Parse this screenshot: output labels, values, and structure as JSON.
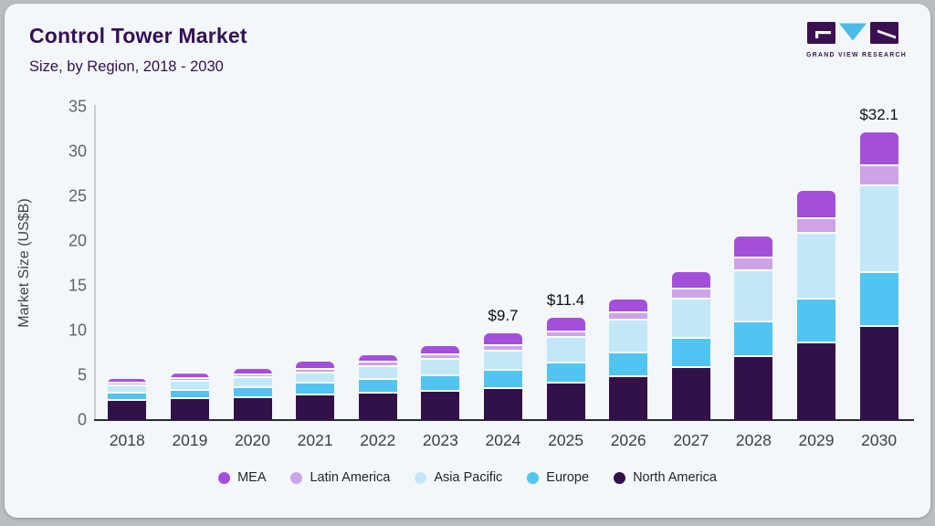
{
  "header": {
    "title": "Control Tower Market",
    "subtitle": "Size, by Region, 2018 - 2030",
    "logo_text": "GRAND VIEW RESEARCH"
  },
  "chart_data": {
    "type": "bar",
    "stacked": true,
    "title": "Control Tower Market Size, by Region, 2018 - 2030",
    "xlabel": "",
    "ylabel": "Market Size (US$B)",
    "ylim": [
      0,
      35
    ],
    "yticks": [
      0,
      5,
      10,
      15,
      20,
      25,
      30,
      35
    ],
    "grid": false,
    "legend_position": "bottom",
    "categories": [
      "2018",
      "2019",
      "2020",
      "2021",
      "2022",
      "2023",
      "2024",
      "2025",
      "2026",
      "2027",
      "2028",
      "2029",
      "2030"
    ],
    "series": [
      {
        "name": "North America",
        "color": "#321149",
        "values": [
          2.1,
          2.3,
          2.4,
          2.8,
          3.0,
          3.2,
          3.5,
          4.1,
          4.8,
          5.8,
          7.0,
          8.6,
          10.4
        ]
      },
      {
        "name": "Europe",
        "color": "#52c4f1",
        "values": [
          0.9,
          1.0,
          1.2,
          1.3,
          1.45,
          1.7,
          2.0,
          2.2,
          2.7,
          3.3,
          3.9,
          4.9,
          6.0
        ]
      },
      {
        "name": "Asia Pacific",
        "color": "#c2e8f8",
        "values": [
          0.8,
          1.0,
          1.1,
          1.1,
          1.5,
          1.8,
          2.2,
          2.9,
          3.6,
          4.4,
          5.7,
          7.3,
          9.7
        ]
      },
      {
        "name": "Latin America",
        "color": "#cda4e8",
        "values": [
          0.3,
          0.3,
          0.35,
          0.45,
          0.5,
          0.5,
          0.6,
          0.65,
          0.8,
          1.1,
          1.5,
          1.7,
          2.3
        ]
      },
      {
        "name": "MEA",
        "color": "#a44fd9",
        "values": [
          0.5,
          0.6,
          0.7,
          0.85,
          0.85,
          1.1,
          1.4,
          1.55,
          1.6,
          1.9,
          2.4,
          3.1,
          3.7
        ]
      }
    ],
    "totals": [
      4.6,
      5.2,
      5.75,
      6.5,
      7.3,
      8.3,
      9.7,
      11.4,
      13.5,
      16.5,
      20.5,
      25.6,
      32.1
    ],
    "annotations": [
      {
        "category": "2024",
        "label": "$9.7"
      },
      {
        "category": "2025",
        "label": "$11.4"
      },
      {
        "category": "2030",
        "label": "$32.1"
      }
    ],
    "legend": [
      "MEA",
      "Latin America",
      "Asia Pacific",
      "Europe",
      "North America"
    ]
  },
  "colors": {
    "card_bg": "#f4f7fa",
    "outer_bg": "#b9bdc2",
    "title": "#331054",
    "logo_dark": "#3a1150",
    "logo_cyan": "#4cbbe9",
    "axis_line": "#c9ced3",
    "baseline": "#2b2b35"
  }
}
